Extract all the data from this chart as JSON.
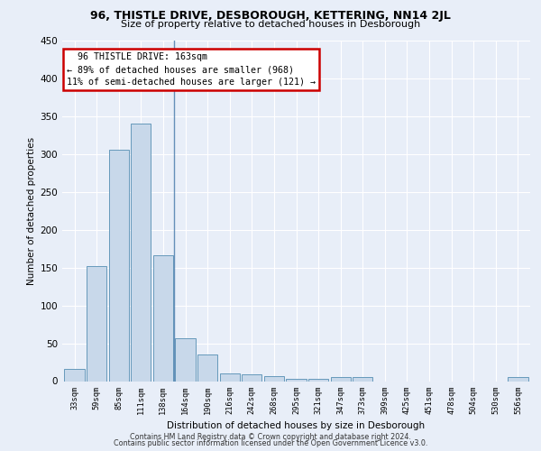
{
  "title1": "96, THISTLE DRIVE, DESBOROUGH, KETTERING, NN14 2JL",
  "title2": "Size of property relative to detached houses in Desborough",
  "xlabel": "Distribution of detached houses by size in Desborough",
  "ylabel": "Number of detached properties",
  "categories": [
    "33sqm",
    "59sqm",
    "85sqm",
    "111sqm",
    "138sqm",
    "164sqm",
    "190sqm",
    "216sqm",
    "242sqm",
    "268sqm",
    "295sqm",
    "321sqm",
    "347sqm",
    "373sqm",
    "399sqm",
    "425sqm",
    "451sqm",
    "478sqm",
    "504sqm",
    "530sqm",
    "556sqm"
  ],
  "values": [
    16,
    152,
    306,
    340,
    166,
    57,
    35,
    10,
    9,
    6,
    3,
    3,
    5,
    5,
    0,
    0,
    0,
    0,
    0,
    0,
    5
  ],
  "bar_color": "#c8d8ea",
  "bar_edge_color": "#6699bb",
  "annotation_line1": "96 THISTLE DRIVE: 163sqm",
  "annotation_line2": "← 89% of detached houses are smaller (968)",
  "annotation_line3": "11% of semi-detached houses are larger (121) →",
  "annotation_box_color": "#ffffff",
  "annotation_border_color": "#cc0000",
  "vline_x": 4.5,
  "ylim": [
    0,
    450
  ],
  "yticks": [
    0,
    50,
    100,
    150,
    200,
    250,
    300,
    350,
    400,
    450
  ],
  "bg_color": "#e8eef8",
  "plot_bg_color": "#e8eef8",
  "grid_color": "#ffffff",
  "footer1": "Contains HM Land Registry data © Crown copyright and database right 2024.",
  "footer2": "Contains public sector information licensed under the Open Government Licence v3.0."
}
